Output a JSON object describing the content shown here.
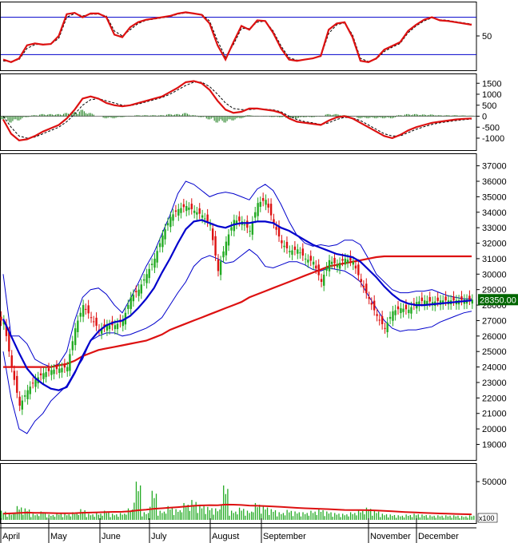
{
  "colors": {
    "frame": "#000000",
    "stoch_main": "#dd1111",
    "stoch_signal": "#000000",
    "stoch_band": "#0000cc",
    "macd_line": "#dd1111",
    "macd_signal": "#000000",
    "macd_hist": "#117711",
    "up_candle": "#22aa22",
    "down_candle": "#dd1111",
    "ma_short": "#0000cc",
    "ma_long": "#dd1111",
    "bollinger": "#0000cc",
    "volume_bar": "#22aa22",
    "volume_ma": "#dd1111",
    "price_tag_bg": "#006600",
    "price_tag_text": "#ffffff"
  },
  "chart_data": [
    {
      "type": "line",
      "panel": "stochastic",
      "yticks": [
        "50"
      ],
      "bands": [
        80,
        20
      ],
      "ylim": [
        0,
        100
      ],
      "x": [
        0,
        10,
        20,
        30,
        40,
        50,
        60,
        70,
        80,
        90,
        100,
        110,
        120,
        130,
        140,
        150,
        160,
        170,
        180,
        190,
        200,
        210,
        220,
        230,
        240,
        250,
        260,
        270,
        280,
        290,
        300,
        310,
        320,
        330,
        340,
        350,
        360,
        370,
        380,
        390,
        400,
        410,
        420,
        430,
        440,
        450,
        460,
        470,
        480,
        490,
        500,
        510,
        520,
        530,
        540,
        550,
        560,
        570,
        580,
        590
      ],
      "series": [
        {
          "values": [
            12,
            8,
            14,
            35,
            38,
            36,
            37,
            50,
            85,
            87,
            80,
            86,
            86,
            80,
            52,
            48,
            64,
            72,
            76,
            78,
            80,
            82,
            86,
            88,
            86,
            84,
            70,
            35,
            12,
            40,
            66,
            60,
            75,
            74,
            55,
            30,
            12,
            10,
            12,
            14,
            18,
            60,
            70,
            72,
            48,
            10,
            8,
            14,
            28,
            34,
            40,
            58,
            68,
            76,
            80,
            75,
            74,
            72,
            70,
            68
          ]
        },
        {
          "values": [
            10,
            9,
            12,
            30,
            36,
            37,
            37,
            46,
            80,
            86,
            82,
            85,
            85,
            82,
            58,
            50,
            60,
            70,
            75,
            77,
            79,
            81,
            85,
            87,
            86,
            85,
            74,
            42,
            16,
            36,
            62,
            62,
            72,
            74,
            58,
            34,
            15,
            11,
            12,
            14,
            17,
            54,
            68,
            71,
            52,
            14,
            9,
            13,
            25,
            32,
            38,
            55,
            66,
            74,
            79,
            76,
            75,
            73,
            71,
            69
          ]
        }
      ]
    },
    {
      "type": "line",
      "panel": "macd",
      "yticks": [
        "1500",
        "1000",
        "500",
        "0",
        "-500",
        "-1000"
      ],
      "ylim": [
        -1400,
        1800
      ],
      "x": [
        0,
        10,
        20,
        30,
        40,
        50,
        60,
        70,
        80,
        90,
        100,
        110,
        120,
        130,
        140,
        150,
        160,
        170,
        180,
        190,
        200,
        210,
        220,
        230,
        240,
        250,
        260,
        270,
        280,
        290,
        300,
        310,
        320,
        330,
        340,
        350,
        360,
        370,
        380,
        390,
        400,
        410,
        420,
        430,
        440,
        450,
        460,
        470,
        480,
        490,
        500,
        510,
        520,
        530,
        540,
        550,
        560,
        570,
        580,
        590
      ],
      "series": [
        {
          "values": [
            -150,
            -800,
            -1100,
            -1050,
            -900,
            -700,
            -550,
            -400,
            -100,
            300,
            800,
            900,
            800,
            600,
            500,
            450,
            500,
            600,
            700,
            800,
            900,
            1100,
            1300,
            1550,
            1600,
            1500,
            1200,
            700,
            300,
            150,
            200,
            350,
            350,
            300,
            250,
            150,
            -100,
            -250,
            -300,
            -350,
            -400,
            -200,
            -50,
            0,
            -100,
            -300,
            -500,
            -700,
            -900,
            -1000,
            -850,
            -650,
            -500,
            -400,
            -300,
            -250,
            -200,
            -150,
            -120,
            -100
          ]
        },
        {
          "values": [
            0,
            -500,
            -900,
            -1000,
            -950,
            -800,
            -650,
            -500,
            -250,
            100,
            500,
            750,
            800,
            700,
            600,
            500,
            480,
            550,
            650,
            750,
            850,
            1000,
            1200,
            1400,
            1550,
            1550,
            1350,
            1000,
            600,
            350,
            300,
            300,
            330,
            320,
            290,
            200,
            0,
            -150,
            -250,
            -300,
            -380,
            -300,
            -150,
            -50,
            -80,
            -200,
            -400,
            -600,
            -800,
            -900,
            -900,
            -750,
            -600,
            -480,
            -380,
            -300,
            -250,
            -200,
            -160,
            -130
          ]
        }
      ],
      "histogram": [
        -150,
        -300,
        -200,
        -50,
        50,
        100,
        100,
        100,
        150,
        200,
        300,
        150,
        0,
        -100,
        -100,
        -50,
        20,
        50,
        50,
        50,
        50,
        100,
        100,
        150,
        50,
        -50,
        -150,
        -300,
        -300,
        -200,
        -100,
        50,
        20,
        -20,
        -40,
        -50,
        -100,
        -100,
        -50,
        -50,
        -20,
        100,
        100,
        50,
        -20,
        -100,
        -100,
        -100,
        -100,
        -100,
        50,
        100,
        100,
        80,
        80,
        50,
        50,
        50,
        40,
        30
      ]
    },
    {
      "type": "candlestick",
      "panel": "price",
      "yticks": [
        "37000",
        "36000",
        "35000",
        "34000",
        "33000",
        "32000",
        "31000",
        "30000",
        "29000",
        "28000",
        "27000",
        "26000",
        "25000",
        "24000",
        "23000",
        "22000",
        "21000",
        "20000",
        "19000"
      ],
      "ylim": [
        18200,
        37600
      ],
      "last_price_label": "28350.00",
      "x": [
        0,
        10,
        20,
        30,
        40,
        50,
        60,
        70,
        80,
        90,
        100,
        110,
        120,
        130,
        140,
        150,
        160,
        170,
        180,
        190,
        200,
        210,
        220,
        230,
        240,
        250,
        260,
        270,
        280,
        290,
        300,
        310,
        320,
        330,
        340,
        350,
        360,
        370,
        380,
        390,
        400,
        410,
        420,
        430,
        440,
        450,
        460,
        470,
        480,
        490,
        500,
        510,
        520,
        530,
        540,
        550,
        560,
        570,
        580,
        590
      ],
      "close": [
        27000,
        24000,
        21500,
        22500,
        23200,
        23600,
        23800,
        23900,
        24000,
        26500,
        28000,
        27200,
        26400,
        26700,
        26700,
        27000,
        28500,
        29000,
        30000,
        31000,
        32500,
        33700,
        34200,
        34400,
        34100,
        33800,
        33200,
        30200,
        32100,
        33500,
        33400,
        32800,
        34600,
        34800,
        33300,
        32000,
        31500,
        31600,
        31000,
        30800,
        29500,
        30900,
        30600,
        31000,
        30800,
        29500,
        28400,
        27300,
        26500,
        27600,
        27800,
        27700,
        28200,
        28300,
        28200,
        28300,
        28300,
        28300,
        28350,
        28350
      ],
      "ma_short": [
        27100,
        26000,
        24900,
        23900,
        23300,
        22900,
        22600,
        22500,
        22700,
        23600,
        24700,
        25700,
        26300,
        26700,
        26900,
        27000,
        27300,
        27800,
        28400,
        29100,
        30100,
        31000,
        32000,
        32900,
        33400,
        33500,
        33300,
        33100,
        33000,
        33200,
        33300,
        33300,
        33400,
        33400,
        33300,
        33000,
        32800,
        32500,
        32200,
        31900,
        31700,
        31500,
        31300,
        31200,
        31100,
        30800,
        30300,
        29800,
        29200,
        28700,
        28300,
        28100,
        28000,
        28000,
        28050,
        28100,
        28150,
        28200,
        28250,
        28300
      ],
      "ma_long": [
        24000,
        24000,
        24000,
        24000,
        24000,
        24000,
        24000,
        24100,
        24200,
        24400,
        24700,
        24900,
        25100,
        25200,
        25300,
        25400,
        25500,
        25600,
        25700,
        25900,
        26100,
        26400,
        26600,
        26800,
        27000,
        27200,
        27400,
        27600,
        27800,
        28000,
        28200,
        28500,
        28700,
        28900,
        29100,
        29300,
        29500,
        29700,
        29900,
        30100,
        30300,
        30500,
        30600,
        30700,
        30800,
        30900,
        31000,
        31100,
        31150,
        31150,
        31150,
        31150,
        31150,
        31150,
        31150,
        31150,
        31150,
        31150,
        31150,
        31150
      ],
      "bb_upper": [
        30000,
        26000,
        26000,
        25500,
        24500,
        24200,
        24000,
        24200,
        25000,
        27000,
        28500,
        29000,
        29100,
        28700,
        28000,
        27500,
        28400,
        29400,
        30500,
        31400,
        32600,
        33800,
        35200,
        36000,
        35800,
        35400,
        35000,
        35200,
        35300,
        35200,
        35000,
        34800,
        35500,
        35800,
        35400,
        34500,
        33400,
        32500,
        32000,
        31800,
        31900,
        31800,
        31900,
        32200,
        32200,
        31900,
        31000,
        30000,
        29500,
        29000,
        28800,
        28800,
        28900,
        28900,
        29000,
        28800,
        28600,
        28500,
        28400,
        28400
      ],
      "bb_lower": [
        25000,
        22000,
        20000,
        19700,
        20500,
        21000,
        21800,
        22300,
        22800,
        23700,
        24500,
        25700,
        26000,
        26200,
        26200,
        26000,
        26100,
        26300,
        26500,
        26800,
        27200,
        28000,
        28800,
        29500,
        30500,
        31000,
        31200,
        31000,
        30700,
        30800,
        31200,
        31600,
        31200,
        30500,
        30400,
        30600,
        30800,
        30800,
        30600,
        30300,
        30200,
        30400,
        30300,
        30200,
        29900,
        29500,
        28600,
        27800,
        27000,
        26500,
        26300,
        26400,
        26400,
        26500,
        26600,
        26900,
        27100,
        27300,
        27500,
        27600
      ]
    },
    {
      "type": "bar",
      "panel": "volume",
      "yticks": [
        "50000"
      ],
      "unit_label": "x100",
      "ylim": [
        0,
        70000
      ],
      "x_months": [
        "April",
        "May",
        "June",
        "July",
        "August",
        "September",
        "November",
        "December"
      ],
      "x": [
        0,
        10,
        20,
        30,
        40,
        50,
        60,
        70,
        80,
        90,
        100,
        110,
        120,
        130,
        140,
        150,
        160,
        170,
        180,
        190,
        200,
        210,
        220,
        230,
        240,
        250,
        260,
        270,
        280,
        290,
        300,
        310,
        320,
        330,
        340,
        350,
        360,
        370,
        380,
        390,
        400,
        410,
        420,
        430,
        440,
        450,
        460,
        470,
        480,
        490,
        500,
        510,
        520,
        530,
        540,
        550,
        560,
        570,
        580,
        590
      ],
      "values": [
        12000,
        9000,
        18000,
        15000,
        8000,
        11000,
        7000,
        9000,
        8000,
        10000,
        14000,
        8000,
        9000,
        12000,
        8000,
        9000,
        15000,
        50000,
        10000,
        38000,
        12000,
        18000,
        14000,
        22000,
        26000,
        20000,
        17000,
        15000,
        45000,
        12000,
        16000,
        12000,
        22000,
        18000,
        14000,
        10000,
        13000,
        11000,
        10000,
        12000,
        14000,
        11000,
        9000,
        8000,
        10000,
        13000,
        16000,
        12000,
        8000,
        7000,
        6000,
        7000,
        8000,
        7000,
        6000,
        6000,
        6000,
        6000,
        5000,
        6000
      ],
      "ma": [
        8000,
        8500,
        9000,
        9500,
        9200,
        9100,
        8900,
        8700,
        8600,
        8800,
        9300,
        9500,
        9800,
        10200,
        10400,
        10600,
        11200,
        12500,
        13300,
        14500,
        15200,
        16000,
        16600,
        17500,
        18400,
        18900,
        19200,
        19000,
        20000,
        19800,
        19400,
        18700,
        18400,
        18100,
        17600,
        16900,
        16300,
        15700,
        15100,
        14700,
        14400,
        14000,
        13500,
        13000,
        12800,
        12700,
        12600,
        12300,
        11800,
        11200,
        10600,
        10000,
        9600,
        9200,
        8800,
        8400,
        8000,
        7700,
        7400,
        7200
      ]
    }
  ]
}
